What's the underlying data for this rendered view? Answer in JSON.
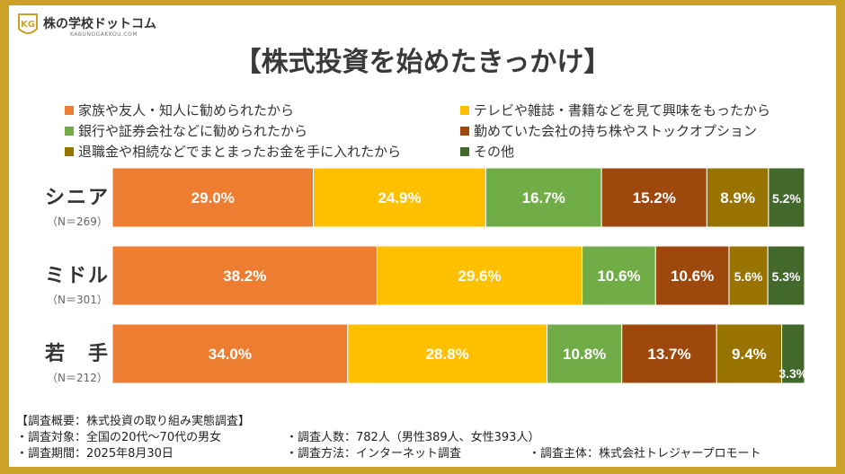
{
  "brand": {
    "name": "株の学校ドットコム",
    "sub": "KABUNOGAKKOU.COM"
  },
  "colors": {
    "frame": "#c9a227",
    "series": [
      "#ed7d31",
      "#ffc000",
      "#70ad47",
      "#9e480e",
      "#997300",
      "#43682b"
    ]
  },
  "chart_data": {
    "type": "bar",
    "orientation": "horizontal",
    "stacked": true,
    "percent": true,
    "title": "【株式投資を始めたきっかけ】",
    "legend_position": "top",
    "categories": [
      "シニア",
      "ミドル",
      "若　手"
    ],
    "sample_sizes": [
      "（N＝269）",
      "（N＝301）",
      "（N＝212）"
    ],
    "series": [
      {
        "name": "家族や友人・知人に勧められたから",
        "values": [
          29.0,
          38.2,
          34.0
        ]
      },
      {
        "name": "テレビや雑誌・書籍などを見て興味をもったから",
        "values": [
          24.9,
          29.6,
          28.8
        ]
      },
      {
        "name": "銀行や証券会社などに勧められたから",
        "values": [
          16.7,
          10.6,
          10.8
        ]
      },
      {
        "name": "勤めていた会社の持ち株やストックオプション",
        "values": [
          15.2,
          10.6,
          13.7
        ]
      },
      {
        "name": "退職金や相続などでまとまったお金を手に入れたから",
        "values": [
          8.9,
          5.6,
          9.4
        ]
      },
      {
        "name": "その他",
        "values": [
          5.2,
          5.3,
          3.3
        ]
      }
    ],
    "labels": [
      [
        "29.0%",
        "24.9%",
        "16.7%",
        "15.2%",
        "8.9%",
        "5.2%"
      ],
      [
        "38.2%",
        "29.6%",
        "10.6%",
        "10.6%",
        "5.6%",
        "5.3%"
      ],
      [
        "34.0%",
        "28.8%",
        "10.8%",
        "13.7%",
        "9.4%",
        "3.3%"
      ]
    ]
  },
  "footer": {
    "heading": "【調査概要：株式投資の取り組み実態調査】",
    "target": "・調査対象：全国の20代～70代の男女",
    "count": "・調査人数：782人（男性389人、女性393人）",
    "period": "・調査期間：2025年8月30日",
    "method": "・調査方法：インターネット調査",
    "sponsor": "・調査主体：株式会社トレジャープロモート"
  }
}
